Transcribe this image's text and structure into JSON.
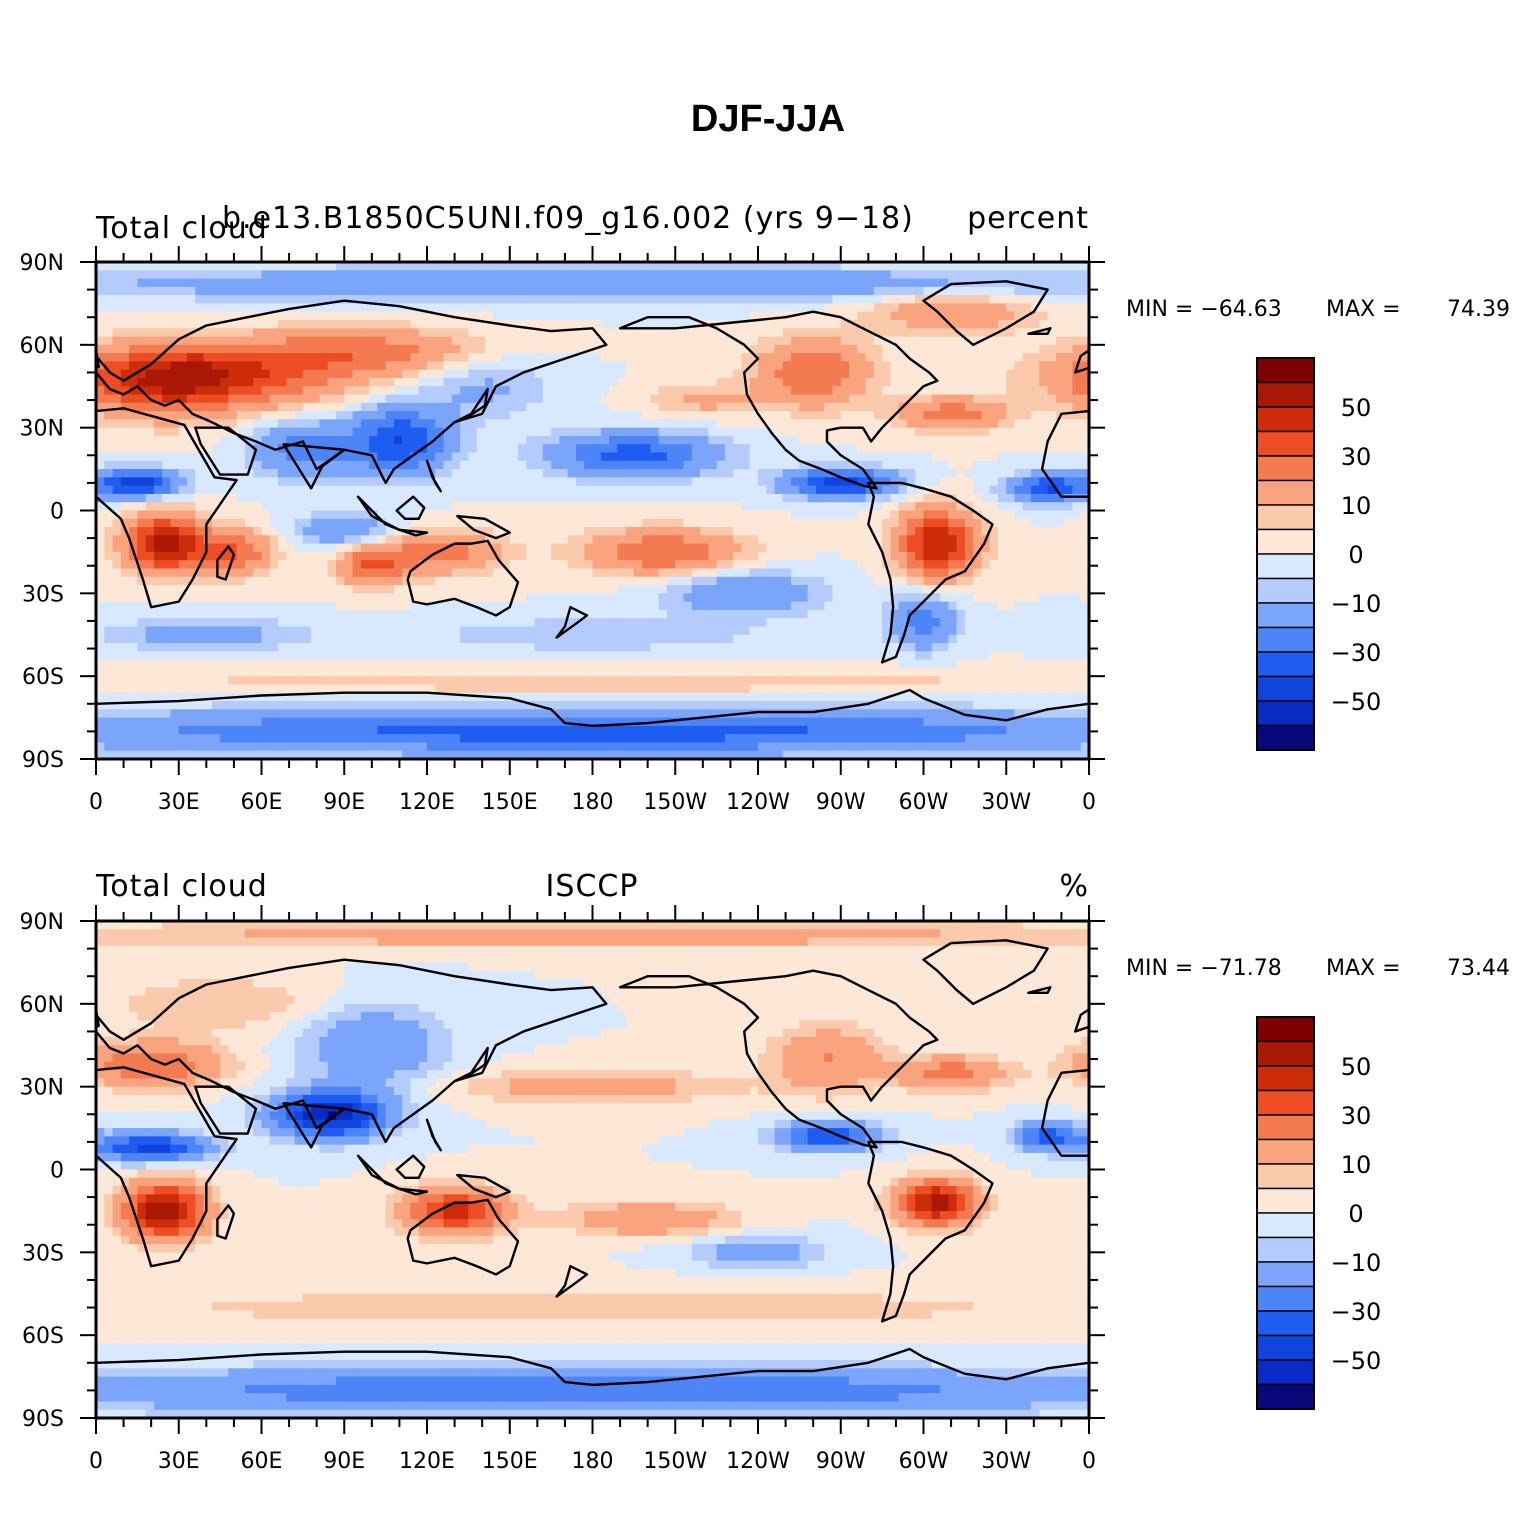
{
  "title": "DJF-JJA",
  "colors": {
    "levels": [
      "#08087a",
      "#0a2ac4",
      "#1144dd",
      "#1e5cf2",
      "#4d84f7",
      "#7aa5fb",
      "#b4ccfd",
      "#d8e8fe",
      "#fde7d6",
      "#fbc9ac",
      "#f9a47e",
      "#f47a52",
      "#ee4c22",
      "#cc2c0a",
      "#a81805",
      "#7e0000"
    ],
    "coast": "#000000"
  },
  "colorbar_labels": [
    "50",
    "30",
    "10",
    "0",
    "−10",
    "−30",
    "−50"
  ],
  "x_ticks": [
    "0",
    "30E",
    "60E",
    "90E",
    "120E",
    "150E",
    "180",
    "150W",
    "120W",
    "90W",
    "60W",
    "30W",
    "0"
  ],
  "y_ticks": [
    "90N",
    "60N",
    "30N",
    "0",
    "30S",
    "60S",
    "90S"
  ],
  "panels": [
    {
      "left": "Total cloud",
      "center": "b.e13.B1850C5UNI.f09_g16.002 (yrs 9−18)",
      "right": "percent",
      "min_label": "MIN = −64.63",
      "max_label": "MAX =",
      "max_value": "74.39"
    },
    {
      "left": "Total cloud",
      "center": "ISCCP",
      "right": "%",
      "min_label": "MIN = −71.78",
      "max_label": "MAX =",
      "max_value": "73.44"
    }
  ],
  "chart_data": {
    "type": "heatmap",
    "title": "DJF-JJA",
    "x_range_deg_east": [
      0,
      360
    ],
    "y_range_deg_lat": [
      -90,
      90
    ],
    "contour_levels": [
      -70,
      -60,
      -50,
      -40,
      -30,
      -20,
      -10,
      -5,
      0,
      5,
      10,
      20,
      30,
      40,
      50,
      60,
      70
    ],
    "fields": [
      {
        "name": "b.e13.B1850C5UNI.f09_g16.002 (yrs 9−18)",
        "units": "percent",
        "min": -64.63,
        "max": 74.39,
        "features": [
          {
            "lon": 45,
            "lat": 50,
            "val": 35,
            "rx": 50,
            "ry": 11
          },
          {
            "lon": 25,
            "lat": 45,
            "val": 30,
            "rx": 30,
            "ry": 12
          },
          {
            "lon": 100,
            "lat": 58,
            "val": 22,
            "rx": 40,
            "ry": 8
          },
          {
            "lon": 110,
            "lat": 25,
            "val": -40,
            "rx": 18,
            "ry": 12
          },
          {
            "lon": 75,
            "lat": 22,
            "val": -25,
            "rx": 18,
            "ry": 10
          },
          {
            "lon": 140,
            "lat": 45,
            "val": -12,
            "rx": 25,
            "ry": 12
          },
          {
            "lon": 195,
            "lat": 20,
            "val": -35,
            "rx": 30,
            "ry": 8
          },
          {
            "lon": 220,
            "lat": 40,
            "val": 12,
            "rx": 20,
            "ry": 6
          },
          {
            "lon": 260,
            "lat": 50,
            "val": 30,
            "rx": 20,
            "ry": 12
          },
          {
            "lon": 310,
            "lat": 35,
            "val": 25,
            "rx": 20,
            "ry": 6
          },
          {
            "lon": 270,
            "lat": 10,
            "val": -45,
            "rx": 20,
            "ry": 5
          },
          {
            "lon": 345,
            "lat": 8,
            "val": -40,
            "rx": 14,
            "ry": 5
          },
          {
            "lon": 15,
            "lat": 10,
            "val": -45,
            "rx": 15,
            "ry": 5
          },
          {
            "lon": 25,
            "lat": -12,
            "val": 55,
            "rx": 14,
            "ry": 10
          },
          {
            "lon": 50,
            "lat": -15,
            "val": 30,
            "rx": 14,
            "ry": 8
          },
          {
            "lon": 100,
            "lat": -20,
            "val": 30,
            "rx": 12,
            "ry": 7
          },
          {
            "lon": 125,
            "lat": -15,
            "val": 25,
            "rx": 22,
            "ry": 8
          },
          {
            "lon": 205,
            "lat": -15,
            "val": 30,
            "rx": 28,
            "ry": 8
          },
          {
            "lon": 305,
            "lat": -12,
            "val": 50,
            "rx": 14,
            "ry": 12
          },
          {
            "lon": 90,
            "lat": -7,
            "val": -20,
            "rx": 18,
            "ry": 6
          },
          {
            "lon": 235,
            "lat": -30,
            "val": -20,
            "rx": 28,
            "ry": 8
          },
          {
            "lon": 300,
            "lat": -40,
            "val": -25,
            "rx": 12,
            "ry": 10
          },
          {
            "lon": 40,
            "lat": -45,
            "val": -15,
            "rx": 35,
            "ry": 6
          },
          {
            "lon": 180,
            "lat": -45,
            "val": -10,
            "rx": 60,
            "ry": 6
          },
          {
            "lon": 180,
            "lat": -62,
            "val": 8,
            "rx": 200,
            "ry": 5
          },
          {
            "lon": 180,
            "lat": -80,
            "val": -35,
            "rx": 200,
            "ry": 8
          },
          {
            "lon": 180,
            "lat": 82,
            "val": -20,
            "rx": 200,
            "ry": 6
          },
          {
            "lon": 310,
            "lat": 72,
            "val": 18,
            "rx": 30,
            "ry": 8
          }
        ]
      },
      {
        "name": "ISCCP",
        "units": "%",
        "min": -71.78,
        "max": 73.44,
        "features": [
          {
            "lon": 20,
            "lat": 38,
            "val": 30,
            "rx": 25,
            "ry": 8
          },
          {
            "lon": 45,
            "lat": 60,
            "val": 10,
            "rx": 40,
            "ry": 10
          },
          {
            "lon": 85,
            "lat": 20,
            "val": -60,
            "rx": 20,
            "ry": 8
          },
          {
            "lon": 100,
            "lat": 45,
            "val": -20,
            "rx": 25,
            "ry": 15
          },
          {
            "lon": 20,
            "lat": 8,
            "val": -45,
            "rx": 20,
            "ry": 5
          },
          {
            "lon": 265,
            "lat": 12,
            "val": -40,
            "rx": 18,
            "ry": 5
          },
          {
            "lon": 345,
            "lat": 12,
            "val": -35,
            "rx": 12,
            "ry": 5
          },
          {
            "lon": 25,
            "lat": -15,
            "val": 60,
            "rx": 14,
            "ry": 10
          },
          {
            "lon": 130,
            "lat": -15,
            "val": 45,
            "rx": 18,
            "ry": 8
          },
          {
            "lon": 305,
            "lat": -12,
            "val": 55,
            "rx": 14,
            "ry": 8
          },
          {
            "lon": 265,
            "lat": 40,
            "val": 20,
            "rx": 20,
            "ry": 12
          },
          {
            "lon": 310,
            "lat": 35,
            "val": 25,
            "rx": 20,
            "ry": 6
          },
          {
            "lon": 200,
            "lat": -18,
            "val": 20,
            "rx": 30,
            "ry": 6
          },
          {
            "lon": 180,
            "lat": 30,
            "val": 15,
            "rx": 50,
            "ry": 6
          },
          {
            "lon": 240,
            "lat": -30,
            "val": -15,
            "rx": 25,
            "ry": 6
          },
          {
            "lon": 180,
            "lat": -50,
            "val": 8,
            "rx": 200,
            "ry": 8
          },
          {
            "lon": 180,
            "lat": -80,
            "val": -30,
            "rx": 200,
            "ry": 8
          },
          {
            "lon": 180,
            "lat": 85,
            "val": 15,
            "rx": 200,
            "ry": 5
          }
        ]
      }
    ]
  }
}
